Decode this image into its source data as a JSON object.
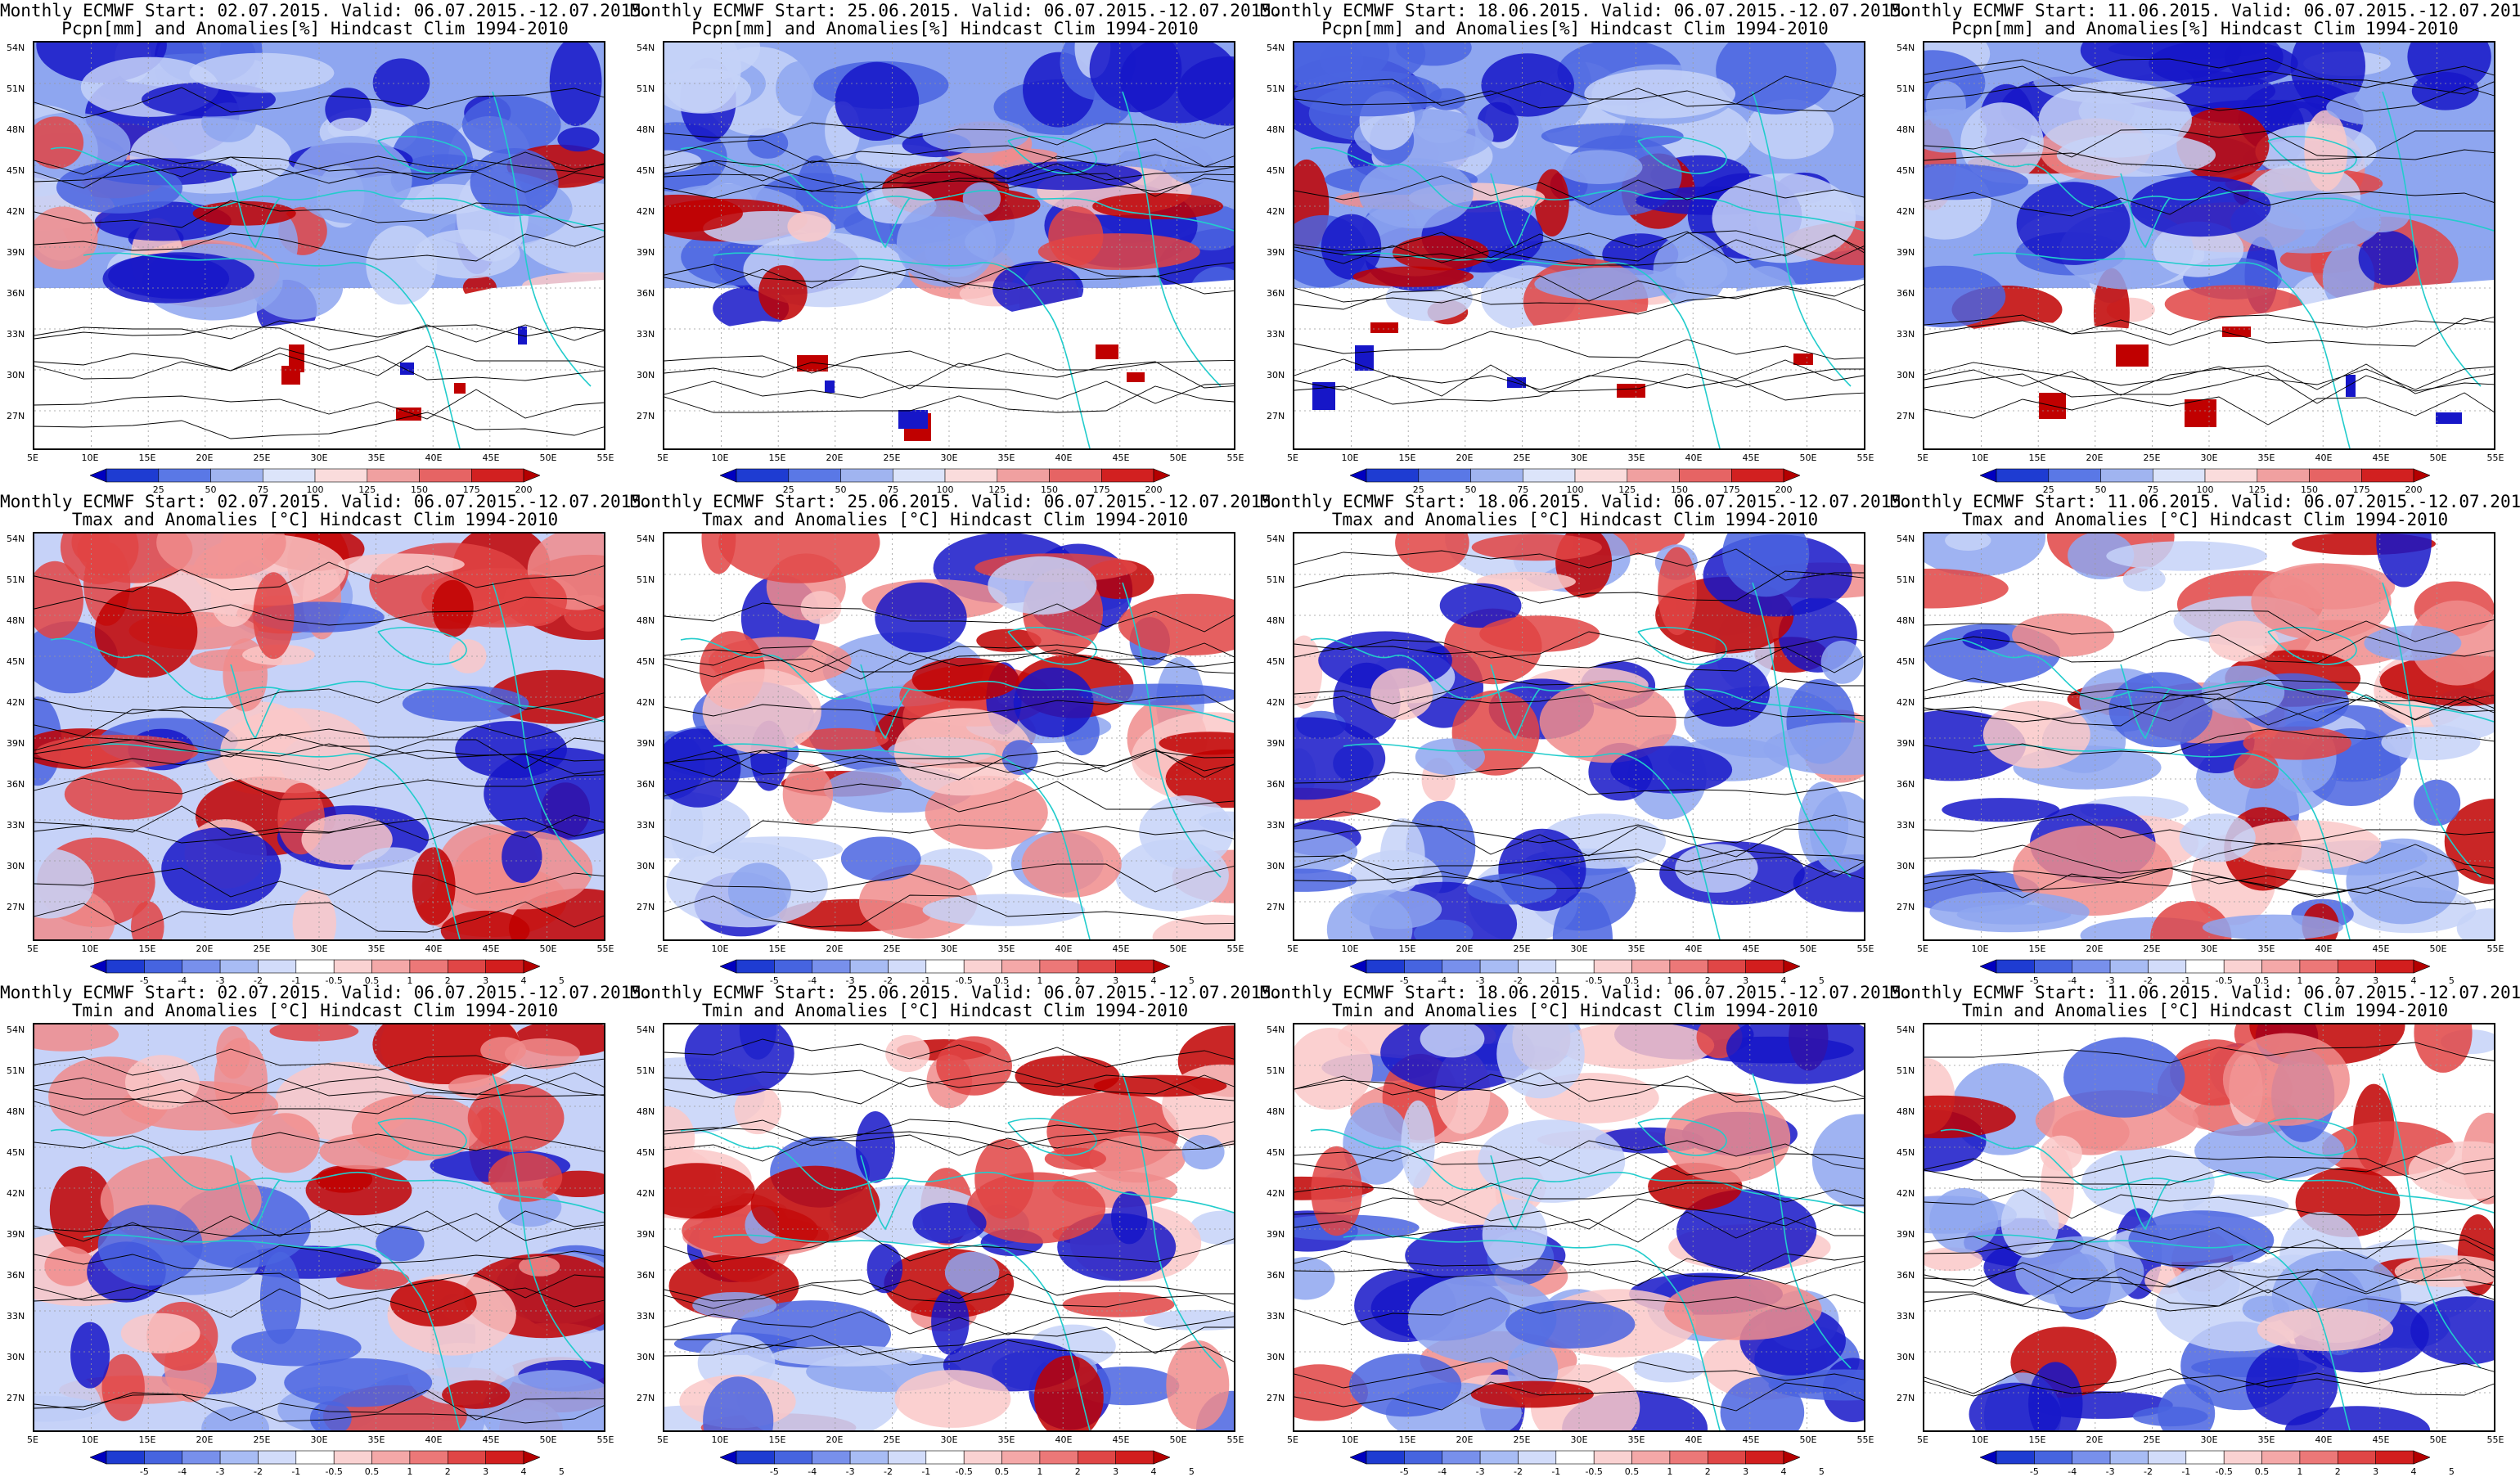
{
  "colors": {
    "deep_blue": "#1616c8",
    "blue": "#4a64e0",
    "light_blue": "#8ea6f0",
    "pale_blue": "#c6d2f8",
    "pale_red": "#fac8c8",
    "light_red": "#f08c8c",
    "red": "#e04444",
    "deep_red": "#c00000",
    "coast": "#22cccc",
    "contour": "#000000"
  },
  "lat_labels": [
    "54N",
    "51N",
    "48N",
    "45N",
    "42N",
    "39N",
    "36N",
    "33N",
    "30N",
    "27N"
  ],
  "lon_labels": [
    "5E",
    "10E",
    "15E",
    "20E",
    "25E",
    "30E",
    "35E",
    "40E",
    "45E",
    "50E",
    "55E"
  ],
  "colorbars": {
    "precip": {
      "labels": [
        "25",
        "50",
        "75",
        "100",
        "125",
        "150",
        "175",
        "200"
      ],
      "colors": [
        "#0000c0",
        "#1e3cd2",
        "#5a78e6",
        "#a0b4f0",
        "#dce4fa",
        "#fadcdc",
        "#f0a0a0",
        "#e66464",
        "#d22020",
        "#b40000"
      ]
    },
    "temp": {
      "labels": [
        "-5",
        "-4",
        "-3",
        "-2",
        "-1",
        "-0.5",
        "0.5",
        "1",
        "2",
        "3",
        "4",
        "5"
      ],
      "colors": [
        "#0000c0",
        "#1e3cd2",
        "#4664e0",
        "#7890ec",
        "#a8bcf4",
        "#d2dcfa",
        "#ffffff",
        "#fad2d2",
        "#f4a8a8",
        "#ec7878",
        "#e04646",
        "#d21e1e",
        "#b40000"
      ]
    }
  },
  "panels": [
    {
      "title1": "Monthly ECMWF Start: 02.07.2015. Valid: 06.07.2015.-12.07.2015.",
      "title2": "Pcpn[mm] and Anomalies[%] Hindcast Clim 1994-2010",
      "kind": "precip",
      "bias": 0.55
    },
    {
      "title1": "Monthly ECMWF Start: 25.06.2015. Valid: 06.07.2015.-12.07.2015.",
      "title2": "Pcpn[mm] and Anomalies[%] Hindcast Clim 1994-2010",
      "kind": "precip",
      "bias": 0.7
    },
    {
      "title1": "Monthly ECMWF Start: 18.06.2015. Valid: 06.07.2015.-12.07.2015.",
      "title2": "Pcpn[mm] and Anomalies[%] Hindcast Clim 1994-2010",
      "kind": "precip",
      "bias": 0.45
    },
    {
      "title1": "Monthly ECMWF Start: 11.06.2015. Valid: 06.07.2015.-12.07.2015.",
      "title2": "Pcpn[mm] and Anomalies[%] Hindcast Clim 1994-2010",
      "kind": "precip",
      "bias": 0.55
    },
    {
      "title1": "Monthly ECMWF Start: 02.07.2015. Valid: 06.07.2015.-12.07.2015.",
      "title2": "Tmax and Anomalies [°C] Hindcast Clim 1994-2010",
      "kind": "temp",
      "bias": 0.55
    },
    {
      "title1": "Monthly ECMWF Start: 25.06.2015. Valid: 06.07.2015.-12.07.2015.",
      "title2": "Tmax and Anomalies [°C] Hindcast Clim 1994-2010",
      "kind": "temp",
      "bias": 0.35
    },
    {
      "title1": "Monthly ECMWF Start: 18.06.2015. Valid: 06.07.2015.-12.07.2015.",
      "title2": "Tmax and Anomalies [°C] Hindcast Clim 1994-2010",
      "kind": "temp",
      "bias": 0.2
    },
    {
      "title1": "Monthly ECMWF Start: 11.06.2015. Valid: 06.07.2015.-12.07.2015.",
      "title2": "Tmax and Anomalies [°C] Hindcast Clim 1994-2010",
      "kind": "temp",
      "bias": 0.25
    },
    {
      "title1": "Monthly ECMWF Start: 02.07.2015. Valid: 06.07.2015.-12.07.2015.",
      "title2": "Tmin and Anomalies [°C] Hindcast Clim 1994-2010",
      "kind": "temp",
      "bias": 0.45
    },
    {
      "title1": "Monthly ECMWF Start: 25.06.2015. Valid: 06.07.2015.-12.07.2015.",
      "title2": "Tmin and Anomalies [°C] Hindcast Clim 1994-2010",
      "kind": "temp",
      "bias": 0.4
    },
    {
      "title1": "Monthly ECMWF Start: 18.06.2015. Valid: 06.07.2015.-12.07.2015.",
      "title2": "Tmin and Anomalies [°C] Hindcast Clim 1994-2010",
      "kind": "temp",
      "bias": 0.2
    },
    {
      "title1": "Monthly ECMWF Start: 11.06.2015. Valid: 06.07.2015.-12.07.2015.",
      "title2": "Tmin and Anomalies [°C] Hindcast Clim 1994-2010",
      "kind": "temp",
      "bias": 0.25
    }
  ]
}
